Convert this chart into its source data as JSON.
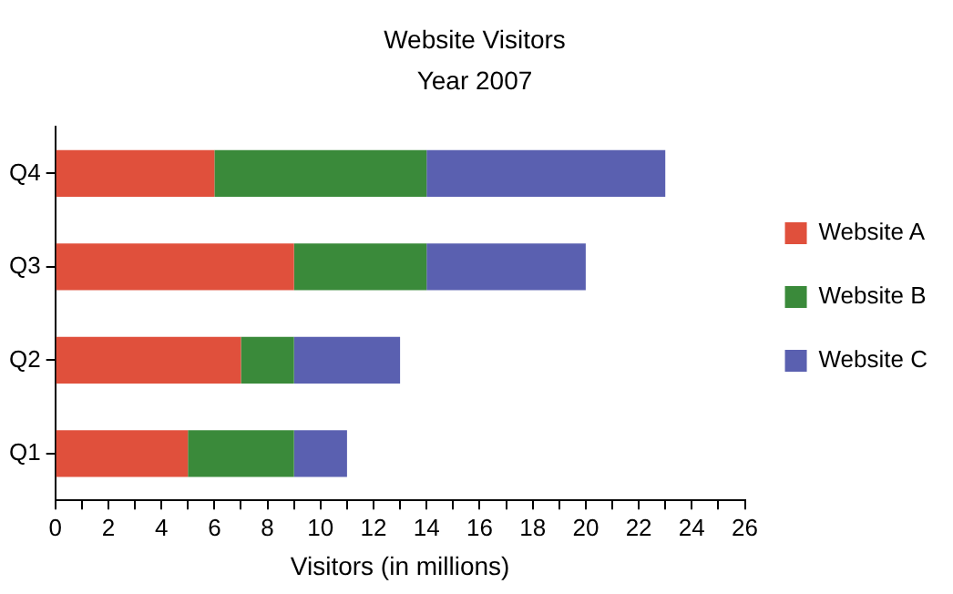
{
  "chart_data": {
    "type": "bar",
    "orientation": "horizontal",
    "stacked": true,
    "title": "Website Visitors",
    "subtitle": "Year 2007",
    "xlabel": "Visitors (in millions)",
    "categories": [
      "Q4",
      "Q3",
      "Q2",
      "Q1"
    ],
    "series": [
      {
        "name": "Website A",
        "color": "#e0503c",
        "values": [
          6,
          9,
          7,
          5
        ]
      },
      {
        "name": "Website B",
        "color": "#3a8a3a",
        "values": [
          8,
          5,
          2,
          4
        ]
      },
      {
        "name": "Website C",
        "color": "#5a60b0",
        "values": [
          9,
          6,
          4,
          2
        ]
      }
    ],
    "xlim": [
      0,
      26
    ],
    "xticks": [
      0,
      {
        "value": 1,
        "label": null
      },
      2,
      {
        "value": 3,
        "label": null
      },
      4,
      {
        "value": 5,
        "label": null
      },
      6,
      {
        "value": 7,
        "label": null
      },
      8,
      {
        "value": 9,
        "label": null
      },
      10,
      {
        "value": 11,
        "label": null
      },
      12,
      {
        "value": 13,
        "label": null
      },
      14,
      {
        "value": 15,
        "label": null
      },
      16,
      {
        "value": 17,
        "label": null
      },
      18,
      {
        "value": 19,
        "label": null
      },
      20,
      {
        "value": 21,
        "label": null
      },
      22,
      {
        "value": 23,
        "label": null
      },
      24,
      {
        "value": 25,
        "label": null
      },
      26
    ],
    "legend": "right",
    "grid": false
  }
}
